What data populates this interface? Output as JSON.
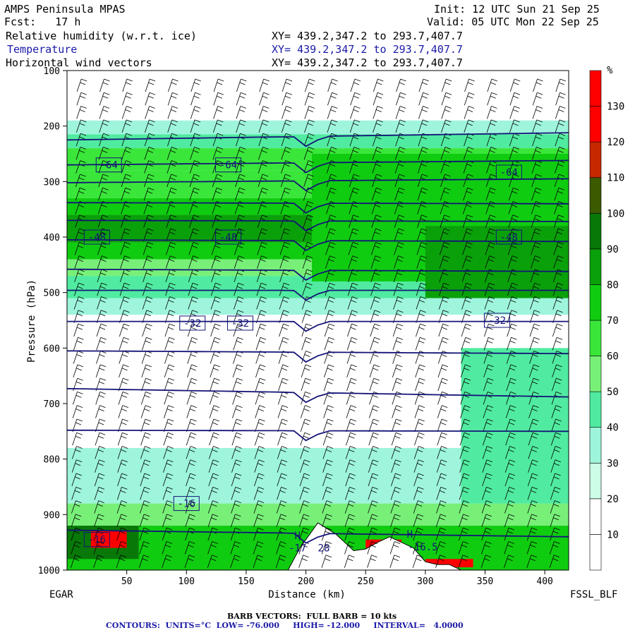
{
  "header": {
    "model": "AMPS Peninsula MPAS",
    "forecast": "Fcst:   17 h",
    "init": "Init: 12 UTC Sun 21 Sep 25",
    "valid": "Valid: 05 UTC Mon 22 Sep 25",
    "fields": [
      {
        "name": "Relative humidity (w.r.t. ice)",
        "xy": "XY= 439.2,347.2 to 293.7,407.7"
      },
      {
        "name": "Temperature",
        "xy": "XY= 439.2,347.2 to 293.7,407.7"
      },
      {
        "name": "Horizontal wind vectors",
        "xy": "XY= 439.2,347.2 to 293.7,407.7"
      }
    ]
  },
  "chart_data": {
    "type": "heatmap",
    "title": "",
    "xlabel": "Distance (km)",
    "ylabel": "Pressure (hPa)",
    "xlim": [
      0,
      420
    ],
    "ylim": [
      1000,
      100
    ],
    "x_ticks": [
      50,
      100,
      150,
      200,
      250,
      300,
      350,
      400
    ],
    "y_ticks": [
      100,
      200,
      300,
      400,
      500,
      600,
      700,
      800,
      900,
      1000
    ],
    "left_endpoint": "EGAR",
    "right_endpoint": "FSSL_BLF",
    "colorbar": {
      "unit": "%",
      "levels": [
        10,
        20,
        30,
        40,
        50,
        60,
        70,
        80,
        90,
        100,
        110,
        120,
        130
      ],
      "colors": [
        "#ffffff",
        "#ffffff",
        "#ccfde6",
        "#9ef5dc",
        "#50eba0",
        "#78f078",
        "#3ae63a",
        "#10cc10",
        "#0aa00a",
        "#087808",
        "#3c5a00",
        "#c82800",
        "#ff0000",
        "#ff0000"
      ]
    },
    "rh_bands": [
      {
        "p_top": 190,
        "p_bot": 215,
        "rh": 35
      },
      {
        "p_top": 215,
        "p_bot": 240,
        "rh": 45
      },
      {
        "p_top": 240,
        "p_bot": 280,
        "rh": 60
      },
      {
        "p_top": 280,
        "p_bot": 330,
        "rh": 65
      },
      {
        "p_top": 330,
        "p_bot": 360,
        "rh": 75
      },
      {
        "p_top": 360,
        "p_bot": 410,
        "rh": 80
      },
      {
        "p_top": 410,
        "p_bot": 440,
        "rh": 70
      },
      {
        "p_top": 440,
        "p_bot": 470,
        "rh": 55
      },
      {
        "p_top": 470,
        "p_bot": 510,
        "rh": 45
      },
      {
        "p_top": 510,
        "p_bot": 540,
        "rh": 35
      },
      {
        "p_top": 780,
        "p_bot": 880,
        "rh": 35
      },
      {
        "p_top": 880,
        "p_bot": 920,
        "rh": 55
      },
      {
        "p_top": 920,
        "p_bot": 1000,
        "rh": 75
      }
    ],
    "rh_patches": [
      {
        "x0": 205,
        "x1": 420,
        "p_top": 250,
        "p_bot": 480,
        "rh": 75
      },
      {
        "x0": 300,
        "x1": 420,
        "p_top": 380,
        "p_bot": 510,
        "rh": 85
      },
      {
        "x0": 330,
        "x1": 420,
        "p_top": 600,
        "p_bot": 880,
        "rh": 40
      },
      {
        "x0": 0,
        "x1": 60,
        "p_top": 920,
        "p_bot": 980,
        "rh": 95
      },
      {
        "x0": 20,
        "x1": 50,
        "p_top": 930,
        "p_bot": 960,
        "rh": 120
      },
      {
        "x0": 300,
        "x1": 340,
        "p_top": 980,
        "p_bot": 995,
        "rh": 125
      },
      {
        "x0": 250,
        "x1": 280,
        "p_top": 945,
        "p_bot": 960,
        "rh": 125
      }
    ],
    "terrain": [
      [
        185,
        1000
      ],
      [
        195,
        960
      ],
      [
        210,
        915
      ],
      [
        225,
        935
      ],
      [
        240,
        965
      ],
      [
        250,
        962
      ],
      [
        260,
        950
      ],
      [
        270,
        940
      ],
      [
        280,
        950
      ],
      [
        290,
        960
      ],
      [
        300,
        985
      ],
      [
        310,
        990
      ],
      [
        320,
        990
      ],
      [
        330,
        1000
      ]
    ],
    "isotherms": [
      {
        "p_left": 225,
        "p_right": 212
      },
      {
        "p_left": 270,
        "p_right": 262
      },
      {
        "p_left": 302,
        "p_right": 295
      },
      {
        "p_left": 338,
        "p_right": 340
      },
      {
        "p_left": 370,
        "p_right": 372
      },
      {
        "p_left": 405,
        "p_right": 408
      },
      {
        "p_left": 458,
        "p_right": 462
      },
      {
        "p_left": 496,
        "p_right": 496
      },
      {
        "p_left": 552,
        "p_right": 552
      },
      {
        "p_left": 605,
        "p_right": 610
      },
      {
        "p_left": 673,
        "p_right": 688
      },
      {
        "p_left": 748,
        "p_right": 750
      },
      {
        "p_left": 928,
        "p_right": 940
      }
    ],
    "contour_labels": [
      {
        "text": "-64",
        "x": 35,
        "p": 270
      },
      {
        "text": "-64",
        "x": 135,
        "p": 270
      },
      {
        "text": "-64",
        "x": 370,
        "p": 283
      },
      {
        "text": "-48",
        "x": 25,
        "p": 400
      },
      {
        "text": "-48",
        "x": 135,
        "p": 400
      },
      {
        "text": "-48",
        "x": 370,
        "p": 400
      },
      {
        "text": "-32",
        "x": 105,
        "p": 555
      },
      {
        "text": "-32",
        "x": 145,
        "p": 555
      },
      {
        "text": "-32",
        "x": 360,
        "p": 550
      },
      {
        "text": "-16",
        "x": 100,
        "p": 880
      },
      {
        "text": "-16",
        "x": 25,
        "p": 945
      }
    ],
    "extrema": [
      {
        "text": "H",
        "x": 193,
        "p": 938
      },
      {
        "text": "-17",
        "x": 193,
        "p": 960
      },
      {
        "text": "28",
        "x": 215,
        "p": 960
      },
      {
        "text": "H",
        "x": 287,
        "p": 935
      },
      {
        "text": "-16.5",
        "x": 298,
        "p": 958
      }
    ],
    "wind_barbs": {
      "columns": 22,
      "rows": 36,
      "full_barb_kts": 10
    }
  },
  "footer": {
    "barb_note": "BARB VECTORS:  FULL BARB = 10 kts",
    "contours": "CONTOURS:  UNITS=°C  LOW= -76.000     HIGH= -12.000     INTERVAL=   4.0000"
  }
}
